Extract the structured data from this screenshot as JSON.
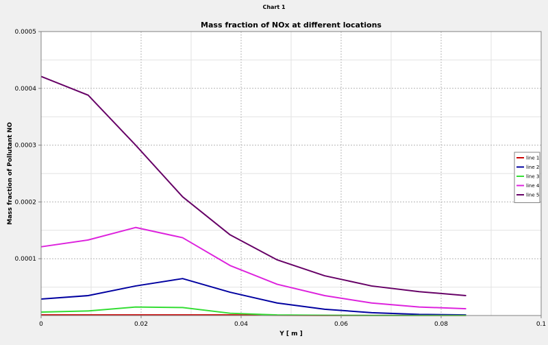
{
  "window": {
    "title": "Chart 1"
  },
  "colors": {
    "plot_background": "#ffffff",
    "grid": "#b4b4b4",
    "line1": "#cc0000",
    "line2": "#0000a0",
    "line3": "#33dd33",
    "line4": "#dd22dd",
    "line5": "#660066"
  },
  "chart_data": {
    "type": "line",
    "title": "Mass fraction of NOx at different locations",
    "xlabel": "Y [ m ]",
    "ylabel": "Mass fraction of Pollutant NO",
    "xlim": [
      0,
      0.1
    ],
    "ylim": [
      0,
      0.0005
    ],
    "x_ticks": [
      "0",
      "0.02",
      "0.04",
      "0.06",
      "0.08",
      "0.1"
    ],
    "y_ticks": [
      "0.0001",
      "0.0002",
      "0.0003",
      "0.0004",
      "0.0005"
    ],
    "x_tick_values": [
      0,
      0.02,
      0.04,
      0.06,
      0.08,
      0.1
    ],
    "y_tick_values": [
      0.0001,
      0.0002,
      0.0003,
      0.0004,
      0.0005
    ],
    "grid": true,
    "legend_position": "right",
    "x": [
      0,
      0.0094,
      0.0189,
      0.0283,
      0.0378,
      0.0472,
      0.0567,
      0.0661,
      0.0756,
      0.085
    ],
    "series": [
      {
        "name": "line 1",
        "color": "#cc0000",
        "values": [
          1e-06,
          1e-06,
          1e-06,
          1e-06,
          1e-06,
          5e-07,
          2e-07,
          1e-07,
          1e-07,
          1e-07
        ]
      },
      {
        "name": "line 2",
        "color": "#0000a0",
        "values": [
          2.9e-05,
          3.5e-05,
          5.2e-05,
          6.5e-05,
          4.1e-05,
          2.2e-05,
          1.1e-05,
          5e-06,
          2e-06,
          1e-06
        ]
      },
      {
        "name": "line 3",
        "color": "#33dd33",
        "values": [
          6e-06,
          8e-06,
          1.5e-05,
          1.4e-05,
          4e-06,
          1e-06,
          5e-07,
          2e-07,
          1e-07,
          1e-07
        ]
      },
      {
        "name": "line 4",
        "color": "#dd22dd",
        "values": [
          0.000121,
          0.000133,
          0.000155,
          0.000137,
          8.8e-05,
          5.5e-05,
          3.5e-05,
          2.2e-05,
          1.5e-05,
          1.2e-05
        ]
      },
      {
        "name": "line 5",
        "color": "#660066",
        "values": [
          0.000421,
          0.000388,
          0.0003,
          0.000209,
          0.000142,
          9.8e-05,
          7e-05,
          5.2e-05,
          4.2e-05,
          3.5e-05
        ]
      }
    ]
  }
}
